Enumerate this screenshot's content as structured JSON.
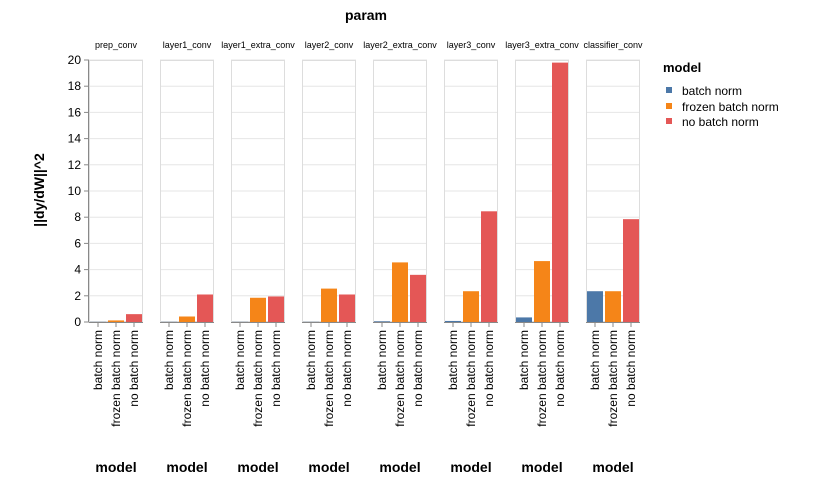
{
  "chart_data": {
    "type": "bar",
    "title": "param",
    "ylabel": "||dy/dW||^2",
    "xlabel": "model",
    "ylim": [
      0,
      20
    ],
    "yticks": [
      0,
      2,
      4,
      6,
      8,
      10,
      12,
      14,
      16,
      18,
      20
    ],
    "grid": true,
    "legend": {
      "title": "model",
      "position": "right",
      "entries": [
        "batch norm",
        "frozen batch norm",
        "no batch norm"
      ]
    },
    "colors": {
      "batch norm": "#4c78a8",
      "frozen batch norm": "#f58518",
      "no batch norm": "#e45756"
    },
    "categories": [
      "batch norm",
      "frozen batch norm",
      "no batch norm"
    ],
    "facets": [
      {
        "name": "prep_conv",
        "values": [
          0.01,
          0.12,
          0.6
        ]
      },
      {
        "name": "layer1_conv",
        "values": [
          0.01,
          0.42,
          2.1
        ]
      },
      {
        "name": "layer1_extra_conv",
        "values": [
          0.01,
          1.85,
          1.95
        ]
      },
      {
        "name": "layer2_conv",
        "values": [
          0.01,
          2.55,
          2.1
        ]
      },
      {
        "name": "layer2_extra_conv",
        "values": [
          0.05,
          4.55,
          3.6
        ]
      },
      {
        "name": "layer3_conv",
        "values": [
          0.08,
          2.35,
          8.45
        ]
      },
      {
        "name": "layer3_extra_conv",
        "values": [
          0.35,
          4.65,
          19.8
        ]
      },
      {
        "name": "classifier_conv",
        "values": [
          2.35,
          2.35,
          7.85
        ]
      }
    ]
  }
}
